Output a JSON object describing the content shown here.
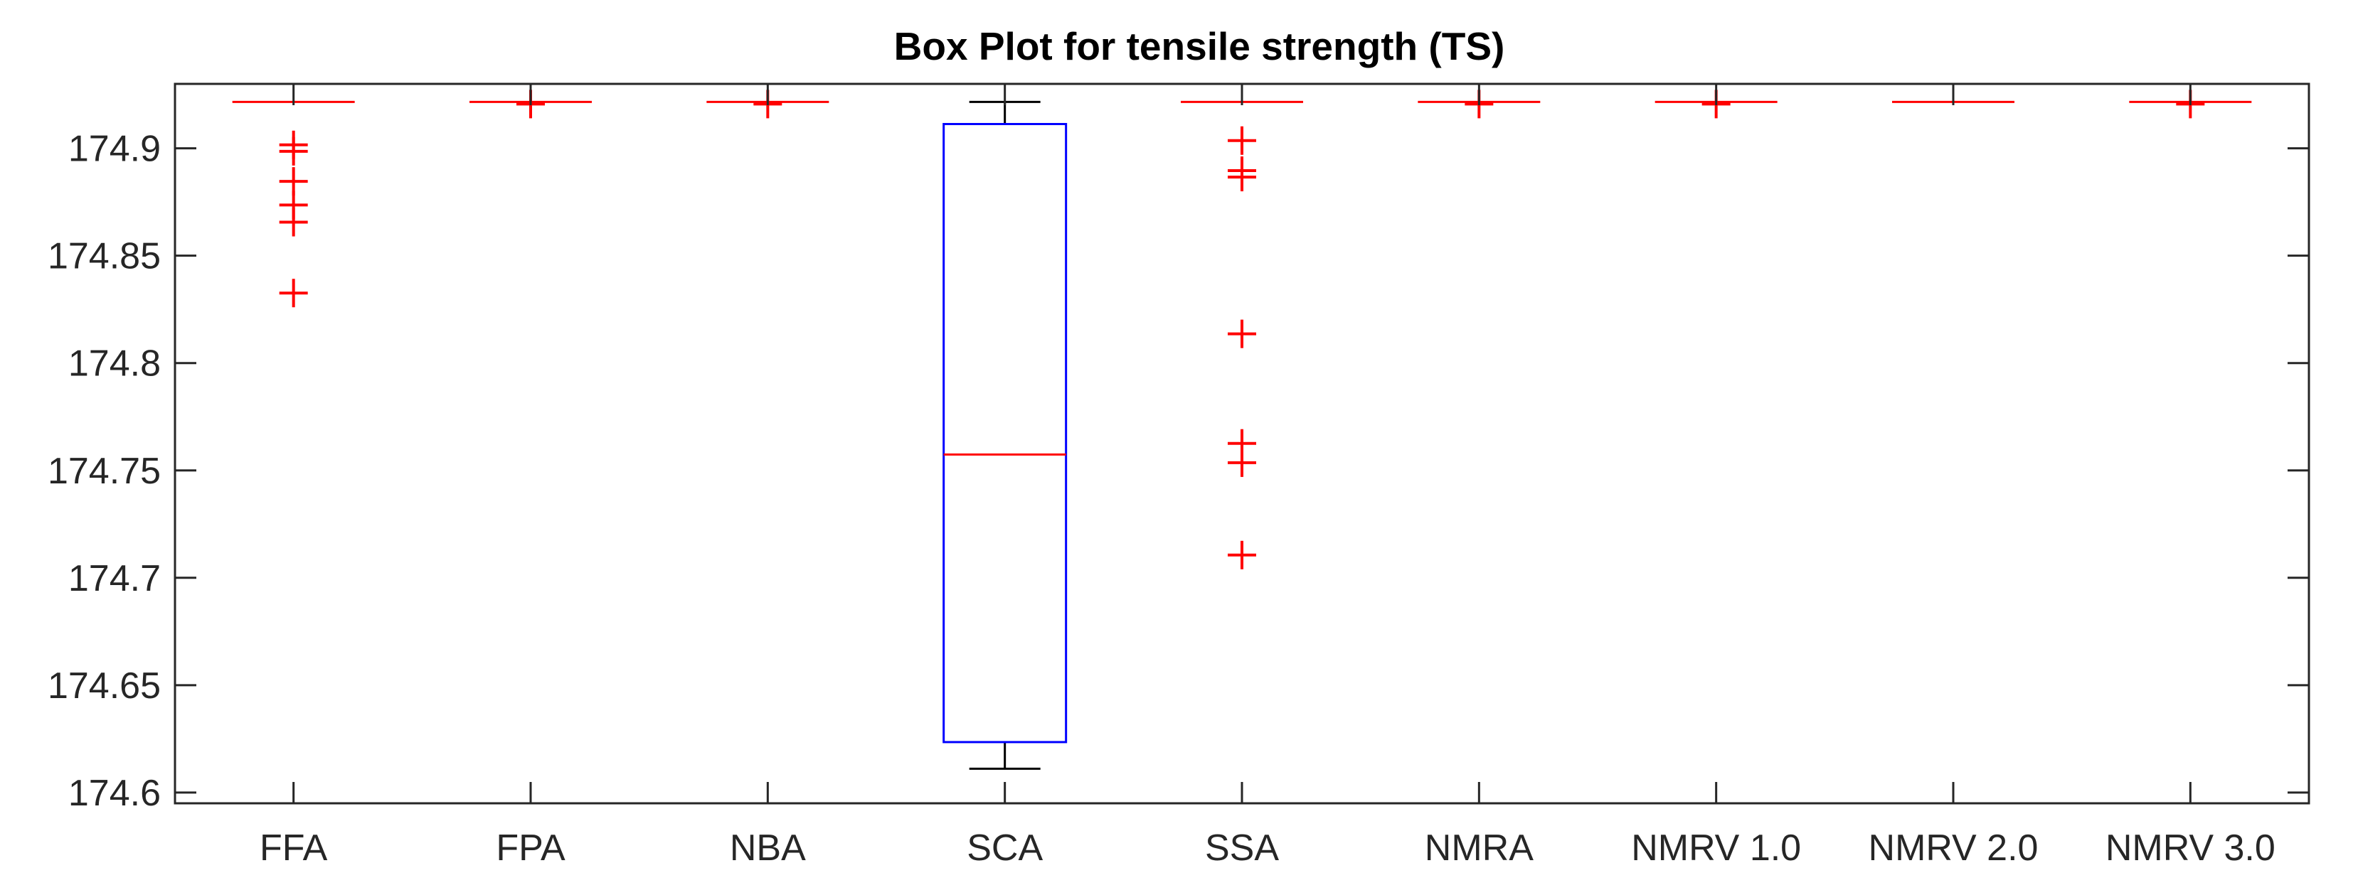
{
  "chart_data": {
    "type": "box",
    "title": "Box Plot for tensile strength (TS)",
    "xlabel": "",
    "ylabel": "",
    "ylim": [
      174.595,
      174.93
    ],
    "y_ticks": [
      174.6,
      174.65,
      174.7,
      174.75,
      174.8,
      174.85,
      174.9
    ],
    "y_tick_labels": [
      "174.6",
      "174.65",
      "174.7",
      "174.75",
      "174.8",
      "174.85",
      "174.9"
    ],
    "grid": false,
    "colors": {
      "box": "#0000ff",
      "median": "#ff0000",
      "whisker": "#000000",
      "outlier": "#ff0000",
      "axis": "#262626"
    },
    "categories": [
      "FFA",
      "FPA",
      "NBA",
      "SCA",
      "SSA",
      "NMRA",
      "NMRV 1.0",
      "NMRV 2.0",
      "NMRV 3.0"
    ],
    "boxes": [
      {
        "category": "FFA",
        "q1": 174.9216,
        "median": 174.9216,
        "q3": 174.9216,
        "whisker_low": 174.9216,
        "whisker_high": 174.9216,
        "outliers": [
          174.9016,
          174.8986,
          174.8846,
          174.8736,
          174.8656,
          174.8326
        ]
      },
      {
        "category": "FPA",
        "q1": 174.9216,
        "median": 174.9216,
        "q3": 174.9216,
        "whisker_low": 174.9216,
        "whisker_high": 174.9216,
        "outliers": [
          174.9206
        ]
      },
      {
        "category": "NBA",
        "q1": 174.9216,
        "median": 174.9216,
        "q3": 174.9216,
        "whisker_low": 174.9216,
        "whisker_high": 174.9216,
        "outliers": [
          174.9206
        ]
      },
      {
        "category": "SCA",
        "q1": 174.6235,
        "median": 174.7574,
        "q3": 174.9113,
        "whisker_low": 174.6111,
        "whisker_high": 174.9216,
        "outliers": []
      },
      {
        "category": "SSA",
        "q1": 174.9216,
        "median": 174.9216,
        "q3": 174.9216,
        "whisker_low": 174.9216,
        "whisker_high": 174.9216,
        "outliers": [
          174.9036,
          174.8896,
          174.8866,
          174.8136,
          174.7626,
          174.7536,
          174.7106
        ]
      },
      {
        "category": "NMRA",
        "q1": 174.9216,
        "median": 174.9216,
        "q3": 174.9216,
        "whisker_low": 174.9216,
        "whisker_high": 174.9216,
        "outliers": [
          174.9206
        ]
      },
      {
        "category": "NMRV 1.0",
        "q1": 174.9216,
        "median": 174.9216,
        "q3": 174.9216,
        "whisker_low": 174.9216,
        "whisker_high": 174.9216,
        "outliers": [
          174.9206
        ]
      },
      {
        "category": "NMRV 2.0",
        "q1": 174.9216,
        "median": 174.9216,
        "q3": 174.9216,
        "whisker_low": 174.9216,
        "whisker_high": 174.9216,
        "outliers": []
      },
      {
        "category": "NMRV 3.0",
        "q1": 174.9216,
        "median": 174.9216,
        "q3": 174.9216,
        "whisker_low": 174.9216,
        "whisker_high": 174.9216,
        "outliers": [
          174.9206
        ]
      }
    ]
  }
}
